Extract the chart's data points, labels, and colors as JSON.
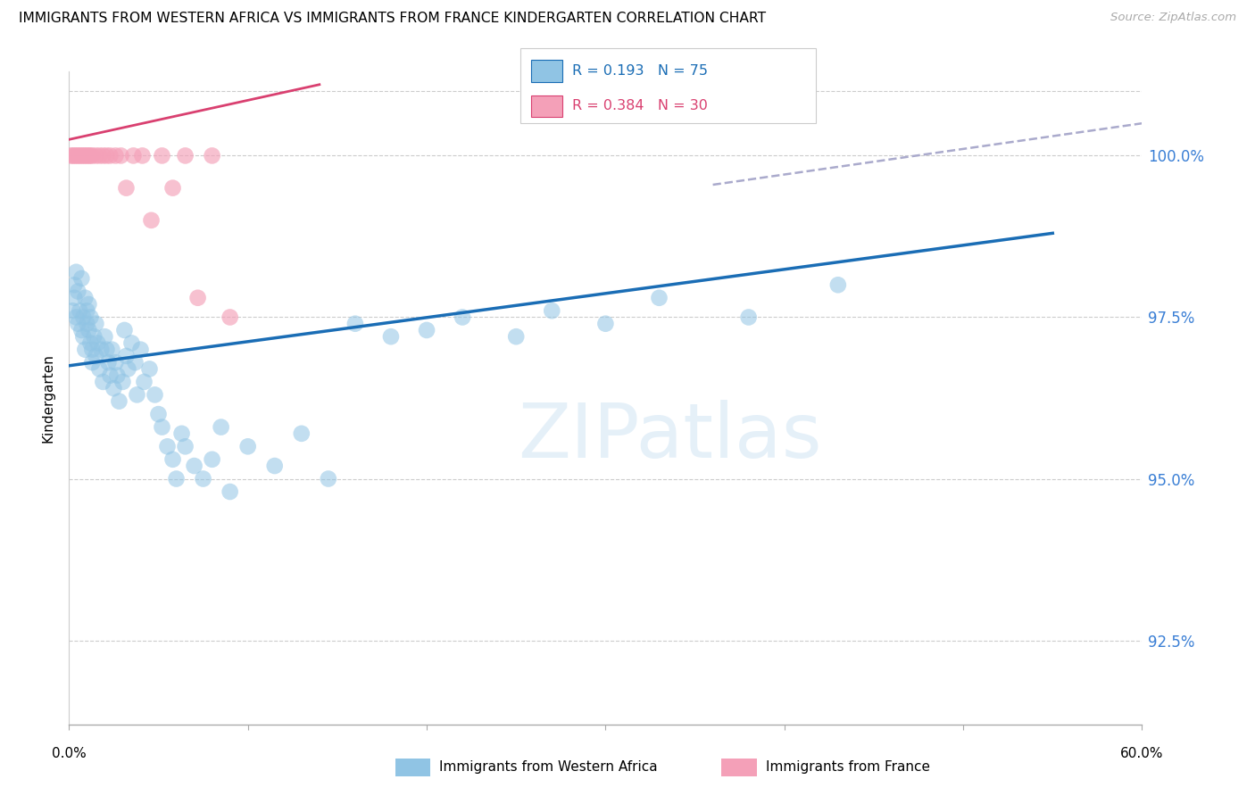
{
  "title": "IMMIGRANTS FROM WESTERN AFRICA VS IMMIGRANTS FROM FRANCE KINDERGARTEN CORRELATION CHART",
  "source": "Source: ZipAtlas.com",
  "ylabel": "Kindergarten",
  "yticks": [
    92.5,
    95.0,
    97.5,
    100.0
  ],
  "ytick_labels": [
    "92.5%",
    "95.0%",
    "97.5%",
    "100.0%"
  ],
  "xlim": [
    0.0,
    60.0
  ],
  "ylim": [
    91.2,
    101.3
  ],
  "blue_R": 0.193,
  "blue_N": 75,
  "pink_R": 0.384,
  "pink_N": 30,
  "blue_color": "#90c4e4",
  "pink_color": "#f4a0b8",
  "blue_line_color": "#1a6db5",
  "pink_line_color": "#d94070",
  "dashed_line_color": "#aaaacc",
  "legend_blue_label": "Immigrants from Western Africa",
  "legend_pink_label": "Immigrants from France",
  "blue_scatter_x": [
    0.2,
    0.3,
    0.3,
    0.4,
    0.4,
    0.5,
    0.5,
    0.6,
    0.7,
    0.7,
    0.8,
    0.8,
    0.9,
    0.9,
    1.0,
    1.0,
    1.1,
    1.1,
    1.2,
    1.2,
    1.3,
    1.3,
    1.4,
    1.5,
    1.5,
    1.6,
    1.7,
    1.8,
    1.9,
    2.0,
    2.1,
    2.2,
    2.3,
    2.4,
    2.5,
    2.6,
    2.7,
    2.8,
    3.0,
    3.1,
    3.2,
    3.3,
    3.5,
    3.7,
    3.8,
    4.0,
    4.2,
    4.5,
    4.8,
    5.0,
    5.2,
    5.5,
    5.8,
    6.0,
    6.3,
    6.5,
    7.0,
    7.5,
    8.0,
    8.5,
    9.0,
    10.0,
    11.5,
    13.0,
    14.5,
    16.0,
    18.0,
    20.0,
    22.0,
    25.0,
    27.0,
    30.0,
    33.0,
    38.0,
    43.0
  ],
  "blue_scatter_y": [
    97.6,
    97.8,
    98.0,
    97.5,
    98.2,
    97.4,
    97.9,
    97.6,
    97.3,
    98.1,
    97.5,
    97.2,
    97.8,
    97.0,
    97.6,
    97.4,
    97.3,
    97.7,
    97.1,
    97.5,
    97.0,
    96.8,
    97.2,
    96.9,
    97.4,
    97.1,
    96.7,
    97.0,
    96.5,
    97.2,
    97.0,
    96.8,
    96.6,
    97.0,
    96.4,
    96.8,
    96.6,
    96.2,
    96.5,
    97.3,
    96.9,
    96.7,
    97.1,
    96.8,
    96.3,
    97.0,
    96.5,
    96.7,
    96.3,
    96.0,
    95.8,
    95.5,
    95.3,
    95.0,
    95.7,
    95.5,
    95.2,
    95.0,
    95.3,
    95.8,
    94.8,
    95.5,
    95.2,
    95.7,
    95.0,
    97.4,
    97.2,
    97.3,
    97.5,
    97.2,
    97.6,
    97.4,
    97.8,
    97.5,
    98.0
  ],
  "pink_scatter_x": [
    0.1,
    0.2,
    0.3,
    0.4,
    0.5,
    0.6,
    0.7,
    0.8,
    0.9,
    1.0,
    1.1,
    1.2,
    1.3,
    1.5,
    1.7,
    1.9,
    2.1,
    2.3,
    2.6,
    2.9,
    3.2,
    3.6,
    4.1,
    4.6,
    5.2,
    5.8,
    6.5,
    7.2,
    8.0,
    9.0
  ],
  "pink_scatter_y": [
    100.0,
    100.0,
    100.0,
    100.0,
    100.0,
    100.0,
    100.0,
    100.0,
    100.0,
    100.0,
    100.0,
    100.0,
    100.0,
    100.0,
    100.0,
    100.0,
    100.0,
    100.0,
    100.0,
    100.0,
    99.5,
    100.0,
    100.0,
    99.0,
    100.0,
    99.5,
    100.0,
    97.8,
    100.0,
    97.5
  ],
  "blue_trendline_x0": 0.0,
  "blue_trendline_x1": 55.0,
  "blue_trendline_y0": 96.75,
  "blue_trendline_y1": 98.8,
  "pink_trendline_x0": 0.0,
  "pink_trendline_x1": 14.0,
  "pink_trendline_y0": 100.25,
  "pink_trendline_y1": 101.1,
  "dashed_x0": 36.0,
  "dashed_x1": 60.0,
  "dashed_y0": 99.55,
  "dashed_y1": 100.5
}
